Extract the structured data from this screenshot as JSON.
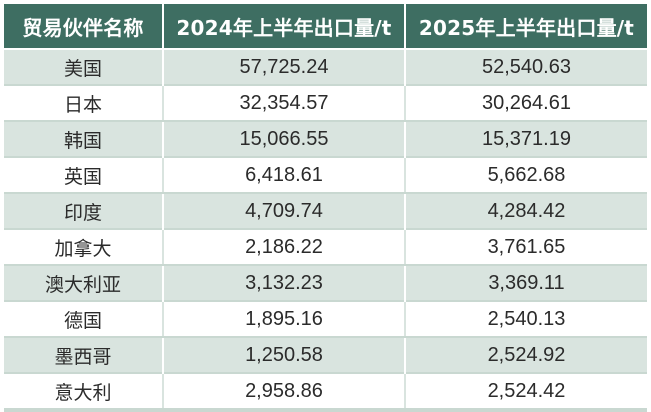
{
  "table": {
    "headers": [
      "贸易伙伴名称",
      "2024年上半年出口量/t",
      "2025年上半年出口量/t"
    ],
    "rows": [
      {
        "partner": "美国",
        "y2024": "57,725.24",
        "y2025": "52,540.63"
      },
      {
        "partner": "日本",
        "y2024": "32,354.57",
        "y2025": "30,264.61"
      },
      {
        "partner": "韩国",
        "y2024": "15,066.55",
        "y2025": "15,371.19"
      },
      {
        "partner": "英国",
        "y2024": "6,418.61",
        "y2025": "5,662.68"
      },
      {
        "partner": "印度",
        "y2024": "4,709.74",
        "y2025": "4,284.42"
      },
      {
        "partner": "加拿大",
        "y2024": "2,186.22",
        "y2025": "3,761.65"
      },
      {
        "partner": "澳大利亚",
        "y2024": "3,132.23",
        "y2025": "3,369.11"
      },
      {
        "partner": "德国",
        "y2024": "1,895.16",
        "y2025": "2,540.13"
      },
      {
        "partner": "墨西哥",
        "y2024": "1,250.58",
        "y2025": "2,524.92"
      },
      {
        "partner": "意大利",
        "y2024": "2,958.86",
        "y2025": "2,524.42"
      }
    ]
  },
  "colors": {
    "header_bg": "#3e6e62",
    "header_text": "#ffffff",
    "row_shaded": "#d9e4df",
    "row_plain": "#ffffff"
  }
}
